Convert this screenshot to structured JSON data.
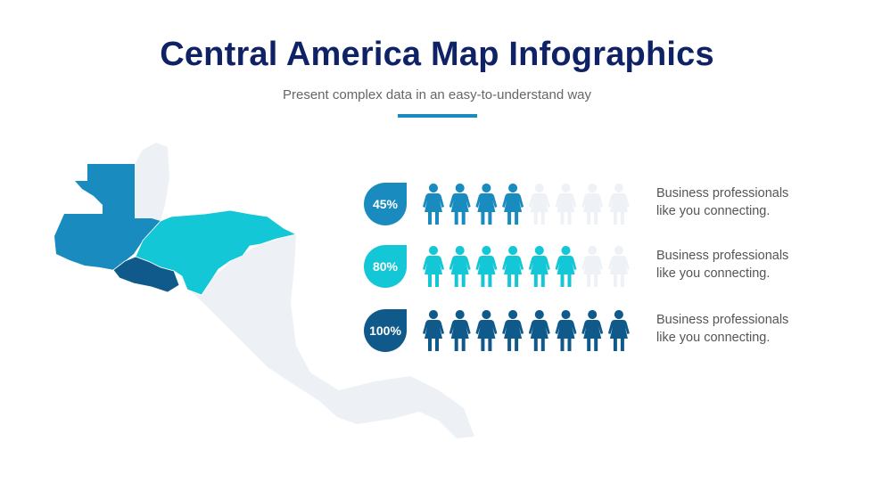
{
  "header": {
    "title": "Central America Map Infographics",
    "subtitle": "Present complex data in an easy-to-understand way",
    "accent_color": "#1a8bbf"
  },
  "map": {
    "base_color": "#edf1f6",
    "highlighted": [
      {
        "region": "Guatemala",
        "color": "#1a8bbf"
      },
      {
        "region": "Honduras",
        "color": "#14c7d6"
      },
      {
        "region": "El Salvador",
        "color": "#0f5a8a"
      }
    ]
  },
  "stats": [
    {
      "percent": "45%",
      "filled": 4,
      "total": 8,
      "color": "#1a8bbf",
      "line1": "Business professionals",
      "line2": "like you connecting."
    },
    {
      "percent": "80%",
      "filled": 6,
      "total": 8,
      "color": "#14c7d6",
      "line1": "Business professionals",
      "line2": "like you connecting."
    },
    {
      "percent": "100%",
      "filled": 8,
      "total": 8,
      "color": "#0f5a8a",
      "line1": "Business professionals",
      "line2": "like you connecting."
    }
  ],
  "inactive_color": "#eef2f7",
  "icon": "woman-person-icon"
}
